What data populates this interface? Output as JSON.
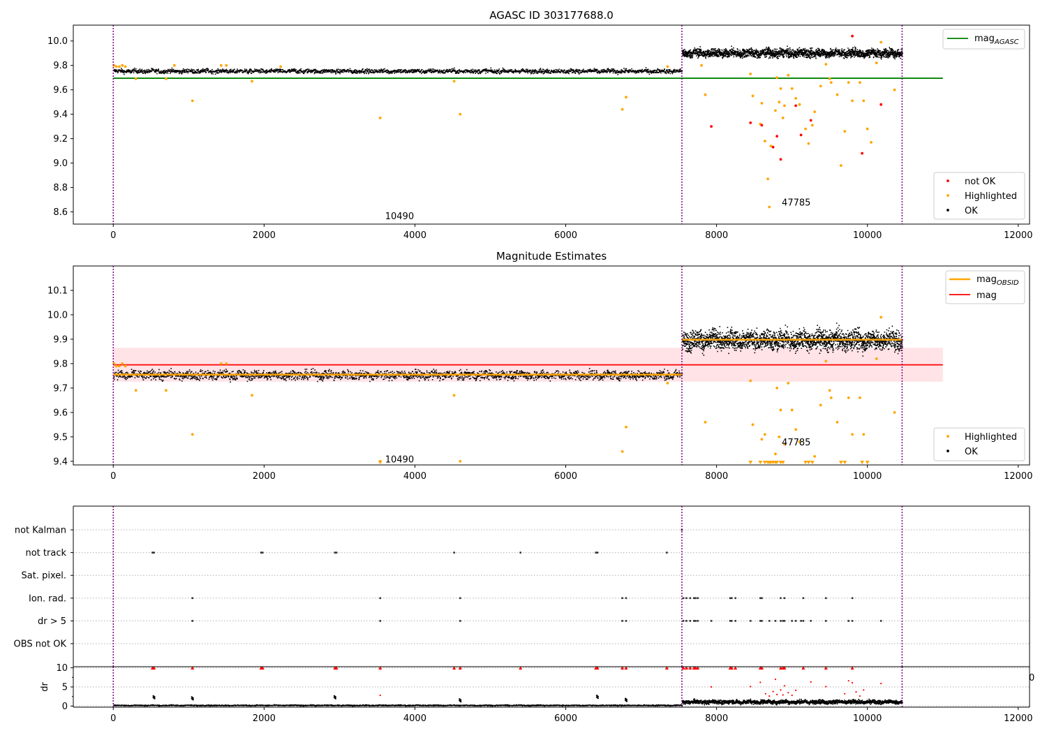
{
  "chart_data": [
    {
      "id": "agasc",
      "type": "scatter",
      "title": "AGASC ID 303177688.0",
      "xlim": [
        -530,
        12150
      ],
      "ylim": [
        8.5,
        10.13
      ],
      "xticks": [
        0,
        2000,
        4000,
        6000,
        8000,
        10000,
        12000
      ],
      "yticks": [
        8.6,
        8.8,
        9.0,
        9.2,
        9.4,
        9.6,
        9.8,
        10.0
      ],
      "obs_boundaries": [
        0,
        7540,
        10460
      ],
      "obs_labels": [
        {
          "text": "10490",
          "x": 3540,
          "y": 8.57
        },
        {
          "text": "47785",
          "x": 8800,
          "y": 8.68
        }
      ],
      "mag_agasc": {
        "value": 9.695,
        "x": [
          0,
          11000
        ]
      },
      "segments": [
        {
          "x": [
            0,
            7540
          ],
          "center": 9.757,
          "spread": 0.015
        },
        {
          "x": [
            7540,
            10460
          ],
          "center": 9.905,
          "spread": 0.03
        }
      ],
      "highlighted": [
        [
          10,
          9.8
        ],
        [
          40,
          9.79
        ],
        [
          80,
          9.79
        ],
        [
          120,
          9.8
        ],
        [
          160,
          9.79
        ],
        [
          300,
          9.69
        ],
        [
          700,
          9.69
        ],
        [
          810,
          9.8
        ],
        [
          1050,
          9.51
        ],
        [
          1430,
          9.8
        ],
        [
          1500,
          9.8
        ],
        [
          1840,
          9.67
        ],
        [
          2220,
          9.79
        ],
        [
          3540,
          9.37
        ],
        [
          4520,
          9.67
        ],
        [
          4600,
          9.4
        ],
        [
          6750,
          9.44
        ],
        [
          6800,
          9.54
        ],
        [
          7350,
          9.79
        ],
        [
          7800,
          9.8
        ],
        [
          7850,
          9.56
        ],
        [
          8450,
          9.73
        ],
        [
          8480,
          9.55
        ],
        [
          8580,
          9.32
        ],
        [
          8600,
          9.49
        ],
        [
          8640,
          9.18
        ],
        [
          8680,
          8.87
        ],
        [
          8700,
          8.64
        ],
        [
          8720,
          9.14
        ],
        [
          8780,
          9.43
        ],
        [
          8800,
          9.7
        ],
        [
          8830,
          9.5
        ],
        [
          8850,
          9.61
        ],
        [
          8880,
          9.37
        ],
        [
          8900,
          9.47
        ],
        [
          8950,
          9.72
        ],
        [
          9000,
          9.61
        ],
        [
          9050,
          9.53
        ],
        [
          9100,
          9.48
        ],
        [
          9180,
          9.28
        ],
        [
          9220,
          9.16
        ],
        [
          9270,
          9.31
        ],
        [
          9300,
          9.42
        ],
        [
          9380,
          9.63
        ],
        [
          9450,
          9.81
        ],
        [
          9500,
          9.69
        ],
        [
          9520,
          9.66
        ],
        [
          9600,
          9.56
        ],
        [
          9650,
          8.98
        ],
        [
          9700,
          9.26
        ],
        [
          9750,
          9.66
        ],
        [
          9800,
          9.51
        ],
        [
          9900,
          9.66
        ],
        [
          9950,
          9.51
        ],
        [
          10000,
          9.28
        ],
        [
          10050,
          9.17
        ],
        [
          10120,
          9.82
        ],
        [
          10180,
          9.99
        ],
        [
          10360,
          9.6
        ]
      ],
      "not_ok": [
        [
          8450,
          9.33
        ],
        [
          8600,
          9.31
        ],
        [
          8750,
          9.13
        ],
        [
          8800,
          9.22
        ],
        [
          8850,
          9.03
        ],
        [
          9050,
          9.47
        ],
        [
          9120,
          9.23
        ],
        [
          9250,
          9.35
        ],
        [
          9930,
          9.08
        ],
        [
          9800,
          10.04
        ],
        [
          10180,
          9.48
        ],
        [
          7930,
          9.3
        ]
      ],
      "legend_lines": [
        "mag",
        "AGASC"
      ],
      "legend_points": [
        "not OK",
        "Highlighted",
        "OK"
      ],
      "colors": {
        "ok": "#000000",
        "highlighted": "#ffa500",
        "not_ok": "#ff0000",
        "mag_agasc": "#008000",
        "boundary": "#800080"
      }
    },
    {
      "id": "magest",
      "type": "scatter",
      "title": "Magnitude Estimates",
      "xlim": [
        -530,
        12150
      ],
      "ylim": [
        9.385,
        10.2
      ],
      "xticks": [
        0,
        2000,
        4000,
        6000,
        8000,
        10000,
        12000
      ],
      "yticks": [
        9.4,
        9.5,
        9.6,
        9.7,
        9.8,
        9.9,
        10.0,
        10.1
      ],
      "obs_boundaries": [
        0,
        7540,
        10460
      ],
      "obs_labels": [
        {
          "text": "10490",
          "x": 3540,
          "y": 9.41
        },
        {
          "text": "47785",
          "x": 8800,
          "y": 9.48
        }
      ],
      "mag": {
        "value": 9.795,
        "band": [
          9.726,
          9.865
        ],
        "x": [
          0,
          11000
        ]
      },
      "mag_obsid": [
        {
          "x": [
            0,
            7540
          ],
          "value": 9.755
        },
        {
          "x": [
            7540,
            10460
          ],
          "value": 9.898
        }
      ],
      "segments": [
        {
          "x": [
            0,
            7540
          ],
          "center": 9.755,
          "spread": 0.016
        },
        {
          "x": [
            7540,
            10460
          ],
          "center": 9.898,
          "spread": 0.035
        }
      ],
      "highlighted": [
        [
          10,
          9.8
        ],
        [
          40,
          9.79
        ],
        [
          80,
          9.79
        ],
        [
          120,
          9.8
        ],
        [
          160,
          9.79
        ],
        [
          300,
          9.69
        ],
        [
          700,
          9.69
        ],
        [
          1050,
          9.51
        ],
        [
          1430,
          9.8
        ],
        [
          1500,
          9.8
        ],
        [
          1840,
          9.67
        ],
        [
          3540,
          9.4
        ],
        [
          4520,
          9.67
        ],
        [
          4600,
          9.4
        ],
        [
          6750,
          9.44
        ],
        [
          6800,
          9.54
        ],
        [
          7350,
          9.72
        ],
        [
          7850,
          9.56
        ],
        [
          8450,
          9.73
        ],
        [
          8480,
          9.55
        ],
        [
          8600,
          9.49
        ],
        [
          8640,
          9.51
        ],
        [
          8780,
          9.43
        ],
        [
          8800,
          9.7
        ],
        [
          8830,
          9.5
        ],
        [
          8850,
          9.61
        ],
        [
          8900,
          9.47
        ],
        [
          8950,
          9.72
        ],
        [
          9000,
          9.61
        ],
        [
          9050,
          9.53
        ],
        [
          9100,
          9.48
        ],
        [
          9300,
          9.42
        ],
        [
          9380,
          9.63
        ],
        [
          9450,
          9.81
        ],
        [
          9500,
          9.69
        ],
        [
          9520,
          9.66
        ],
        [
          9600,
          9.56
        ],
        [
          9750,
          9.66
        ],
        [
          9800,
          9.51
        ],
        [
          9900,
          9.66
        ],
        [
          9950,
          9.51
        ],
        [
          10120,
          9.82
        ],
        [
          10180,
          9.99
        ],
        [
          10360,
          9.6
        ]
      ],
      "below_axis": [
        3540,
        8450,
        8580,
        8640,
        8680,
        8700,
        8720,
        8750,
        8780,
        8800,
        8850,
        8880,
        9180,
        9220,
        9270,
        9650,
        9700,
        9930,
        10000
      ],
      "legend_lines": [
        "mag",
        "OBSID",
        "mag"
      ],
      "legend_points": [
        "Highlighted",
        "OK"
      ],
      "colors": {
        "ok": "#000000",
        "highlighted": "#ffa500",
        "mag": "#ff0000",
        "band": "#ffe0e4",
        "mag_obsid": "#ffa500",
        "boundary": "#800080"
      }
    },
    {
      "id": "flags",
      "type": "scatter",
      "categories": [
        "not Kalman",
        "not track",
        "Sat. pixel.",
        "Ion. rad.",
        "dr > 5",
        "OBS not OK"
      ],
      "xlim": [
        -530,
        12150
      ],
      "obs_boundaries": [
        0,
        7540,
        10460
      ],
      "points": {
        "not Kalman": [
          7540
        ],
        "not track": [
          520,
          540,
          1960,
          1980,
          2940,
          2960,
          4520,
          5400,
          6400,
          6420,
          7340
        ],
        "Ion. rad.": [
          1050,
          3540,
          4600,
          6750,
          6800,
          7560,
          7600,
          7650,
          7700,
          7720,
          7750,
          8180,
          8200,
          8250,
          8580,
          8600,
          8850,
          8900,
          9150,
          9450,
          9800
        ],
        "dr > 5": [
          1050,
          3540,
          4600,
          6750,
          6800,
          7560,
          7600,
          7650,
          7700,
          7720,
          7750,
          7930,
          8180,
          8200,
          8250,
          8450,
          8580,
          8600,
          8700,
          8780,
          8850,
          8880,
          8900,
          9000,
          9050,
          9120,
          9150,
          9250,
          9450,
          9750,
          9800,
          10180
        ]
      }
    },
    {
      "id": "dr",
      "type": "scatter",
      "ylabel": "dr",
      "xlim": [
        -530,
        12150
      ],
      "ylim": [
        -0.3,
        10.3
      ],
      "xticks": [
        0,
        2000,
        4000,
        6000,
        8000,
        10000,
        12000
      ],
      "yticks": [
        0,
        5,
        10
      ],
      "obs_boundaries": [
        0,
        7540,
        10460
      ],
      "segments": [
        {
          "x": [
            0,
            7540
          ],
          "center": 0.3,
          "spread": 0.12
        },
        {
          "x": [
            7540,
            10460
          ],
          "center": 1.2,
          "spread": 0.45
        }
      ],
      "high_triangles": [
        520,
        540,
        1050,
        1960,
        1980,
        2940,
        2960,
        3540,
        4520,
        4600,
        5400,
        6400,
        6420,
        6750,
        6800,
        7340,
        7560,
        7600,
        7650,
        7700,
        7720,
        7750,
        8180,
        8200,
        8250,
        8580,
        8600,
        8850,
        8880,
        8900,
        9150,
        9450,
        9800
      ],
      "red_points": [
        [
          3540,
          2.8
        ],
        [
          8450,
          5.1
        ],
        [
          8580,
          6.2
        ],
        [
          8650,
          3.2
        ],
        [
          8700,
          2.6
        ],
        [
          8750,
          3.8
        ],
        [
          8780,
          7.0
        ],
        [
          8800,
          3.0
        ],
        [
          8850,
          4.2
        ],
        [
          8880,
          2.9
        ],
        [
          8900,
          5.3
        ],
        [
          8950,
          3.5
        ],
        [
          9000,
          2.8
        ],
        [
          9050,
          4.1
        ],
        [
          9250,
          6.3
        ],
        [
          9450,
          5.1
        ],
        [
          9700,
          3.2
        ],
        [
          9750,
          6.6
        ],
        [
          9800,
          6.1
        ],
        [
          9850,
          3.7
        ],
        [
          9900,
          2.6
        ],
        [
          9950,
          4.2
        ],
        [
          10180,
          5.9
        ],
        [
          7930,
          5.0
        ]
      ],
      "black_clusters": [
        [
          540,
          2.3
        ],
        [
          1050,
          2.0
        ],
        [
          2940,
          2.3
        ],
        [
          4600,
          1.5
        ],
        [
          6420,
          2.4
        ],
        [
          6800,
          1.6
        ]
      ],
      "clipped_label": "0",
      "colors": {
        "ok": "#000000",
        "flag": "#ff0000"
      }
    }
  ]
}
